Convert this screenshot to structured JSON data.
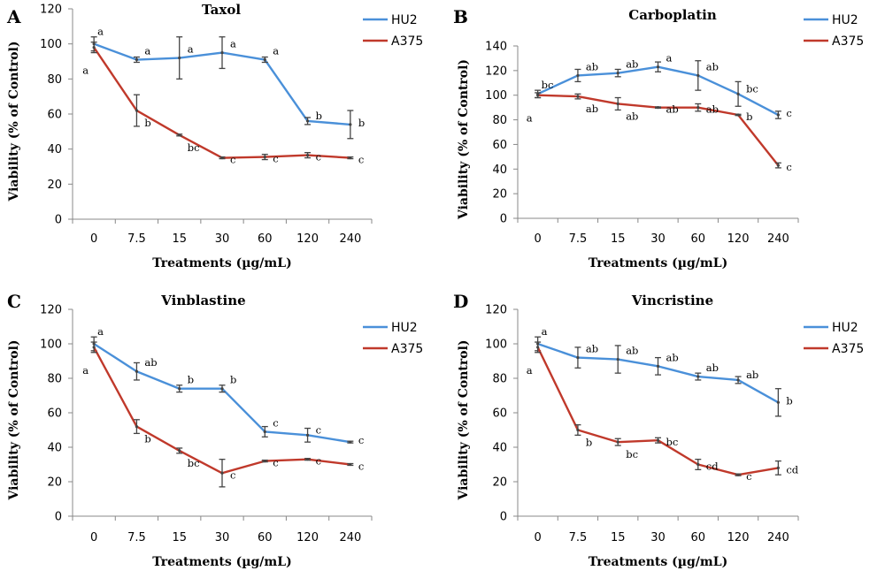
{
  "chart_data": [
    {
      "type": "line",
      "panel": "A",
      "title": "Taxol",
      "xlabel": "Treatments (µg/mL)",
      "ylabel": "Viability (% of Control)",
      "categories": [
        "0",
        "7.5",
        "15",
        "30",
        "60",
        "120",
        "240"
      ],
      "ylim": [
        0,
        120
      ],
      "yticks": [
        0,
        20,
        40,
        60,
        80,
        100,
        120
      ],
      "legend": "top-right",
      "series": [
        {
          "name": "HU2",
          "color": "#4a90d9",
          "values": [
            100,
            91,
            92,
            95,
            91,
            56,
            54
          ],
          "errors": [
            4,
            1.5,
            12,
            9,
            1.5,
            2,
            8
          ],
          "labels": [
            "a",
            "a",
            "a",
            "a",
            "a",
            "b",
            "b"
          ]
        },
        {
          "name": "A375",
          "color": "#c0392b",
          "values": [
            98,
            62,
            48,
            35,
            35.5,
            36.5,
            35
          ],
          "errors": [
            3,
            9,
            0.5,
            0.5,
            1.5,
            1.5,
            0.5
          ],
          "labels": [
            "a",
            "b",
            "bc",
            "c",
            "c",
            "c",
            "c"
          ]
        }
      ]
    },
    {
      "type": "line",
      "panel": "B",
      "title": "Carboplatin",
      "xlabel": "Treatments (µg/mL)",
      "ylabel": "Viability (% of Control)",
      "categories": [
        "0",
        "7.5",
        "15",
        "30",
        "60",
        "120",
        "240"
      ],
      "ylim": [
        0,
        140
      ],
      "yticks": [
        0,
        20,
        40,
        60,
        80,
        100,
        120,
        140
      ],
      "legend": "top-right",
      "series": [
        {
          "name": "HU2",
          "color": "#4a90d9",
          "values": [
            101,
            116,
            118,
            123,
            116,
            101,
            84
          ],
          "errors": [
            3,
            5,
            3,
            4,
            12,
            10,
            3
          ],
          "labels": [
            "bc",
            "ab",
            "ab",
            "a",
            "ab",
            "bc",
            "c"
          ]
        },
        {
          "name": "A375",
          "color": "#c0392b",
          "values": [
            100,
            99,
            93,
            90,
            90,
            84,
            43
          ],
          "errors": [
            2,
            2,
            5,
            0.5,
            3,
            0.5,
            2
          ],
          "labels": [
            "a",
            "ab",
            "ab",
            "ab",
            "ab",
            "b",
            "c"
          ]
        }
      ]
    },
    {
      "type": "line",
      "panel": "C",
      "title": "Vinblastine",
      "xlabel": "Treatments (µg/mL)",
      "ylabel": "Viability (% of Control)",
      "categories": [
        "0",
        "7.5",
        "15",
        "30",
        "60",
        "120",
        "240"
      ],
      "ylim": [
        0,
        120
      ],
      "yticks": [
        0,
        20,
        40,
        60,
        80,
        100,
        120
      ],
      "legend": "top-right",
      "series": [
        {
          "name": "HU2",
          "color": "#4a90d9",
          "values": [
            100,
            84,
            74,
            74,
            49,
            47,
            43
          ],
          "errors": [
            4,
            5,
            2,
            2,
            3,
            4,
            0.5
          ],
          "labels": [
            "a",
            "ab",
            "b",
            "b",
            "c",
            "c",
            "c"
          ]
        },
        {
          "name": "A375",
          "color": "#c0392b",
          "values": [
            98,
            52,
            38,
            25,
            32,
            33,
            30
          ],
          "errors": [
            3,
            4,
            1.5,
            8,
            0.5,
            0.5,
            0.5
          ],
          "labels": [
            "a",
            "b",
            "bc",
            "c",
            "c",
            "c",
            "c"
          ]
        }
      ]
    },
    {
      "type": "line",
      "panel": "D",
      "title": "Vincristine",
      "xlabel": "Treatments (µg/mL)",
      "ylabel": "Viability (% of Control)",
      "categories": [
        "0",
        "7.5",
        "15",
        "30",
        "60",
        "120",
        "240"
      ],
      "ylim": [
        0,
        120
      ],
      "yticks": [
        0,
        20,
        40,
        60,
        80,
        100,
        120
      ],
      "legend": "top-right",
      "series": [
        {
          "name": "HU2",
          "color": "#4a90d9",
          "values": [
            100,
            92,
            91,
            87,
            81,
            79,
            66
          ],
          "errors": [
            4,
            6,
            8,
            5,
            2,
            2,
            8
          ],
          "labels": [
            "a",
            "ab",
            "ab",
            "ab",
            "ab",
            "ab",
            "b"
          ]
        },
        {
          "name": "A375",
          "color": "#c0392b",
          "values": [
            98,
            50,
            43,
            44,
            30,
            24,
            28
          ],
          "errors": [
            3,
            3,
            2,
            1.5,
            3,
            0.5,
            4
          ],
          "labels": [
            "a",
            "b",
            "bc",
            "bc",
            "cd",
            "c",
            "cd"
          ]
        }
      ]
    }
  ]
}
